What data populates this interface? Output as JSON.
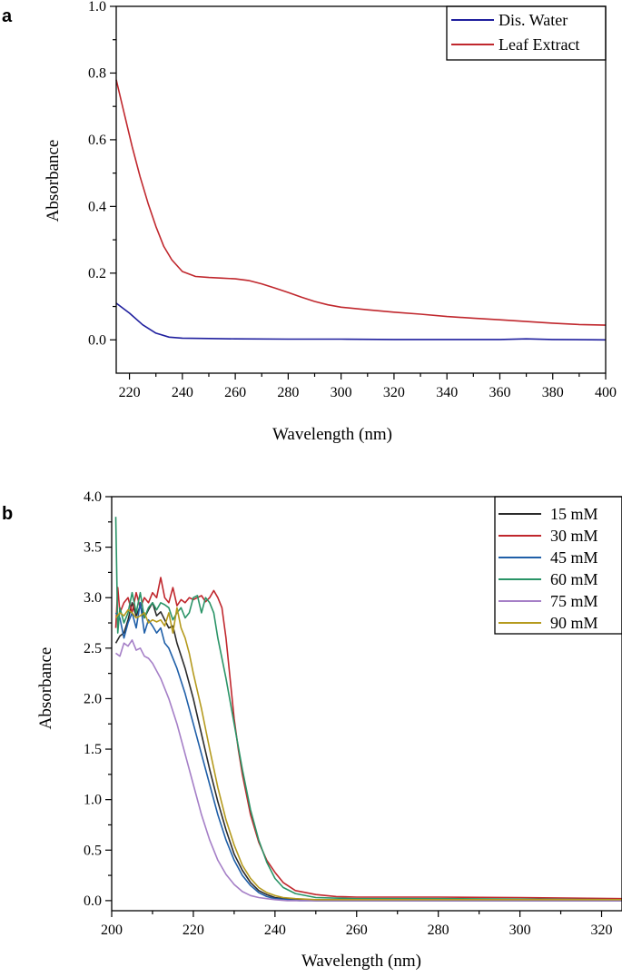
{
  "chart_data": [
    {
      "panel_label": "a",
      "type": "line",
      "xlabel": "Wavelength (nm)",
      "ylabel": "Absorbance",
      "xlim": [
        215,
        400
      ],
      "ylim": [
        -0.1,
        1.0
      ],
      "xticks": [
        220,
        240,
        260,
        280,
        300,
        320,
        340,
        360,
        380,
        400
      ],
      "yticks": [
        0.0,
        0.2,
        0.4,
        0.6,
        0.8,
        1.0
      ],
      "legend_position": "top-right",
      "series": [
        {
          "name": "Dis. Water",
          "color": "#1f1f9e",
          "x": [
            215,
            220,
            225,
            230,
            235,
            240,
            250,
            260,
            280,
            300,
            320,
            340,
            360,
            370,
            380,
            400
          ],
          "y": [
            0.11,
            0.08,
            0.045,
            0.02,
            0.008,
            0.005,
            0.004,
            0.003,
            0.002,
            0.002,
            0.001,
            0.001,
            0.001,
            0.003,
            0.001,
            0.0
          ]
        },
        {
          "name": "Leaf Extract",
          "color": "#c0272d",
          "x": [
            215,
            218,
            221,
            224,
            227,
            230,
            233,
            236,
            240,
            245,
            250,
            255,
            260,
            265,
            270,
            275,
            280,
            285,
            290,
            295,
            300,
            310,
            320,
            330,
            340,
            350,
            360,
            370,
            380,
            390,
            400
          ],
          "y": [
            0.78,
            0.68,
            0.58,
            0.49,
            0.41,
            0.34,
            0.28,
            0.24,
            0.205,
            0.19,
            0.187,
            0.185,
            0.183,
            0.178,
            0.168,
            0.155,
            0.142,
            0.128,
            0.115,
            0.105,
            0.098,
            0.09,
            0.083,
            0.077,
            0.07,
            0.065,
            0.06,
            0.055,
            0.05,
            0.046,
            0.044
          ]
        }
      ]
    },
    {
      "panel_label": "b",
      "type": "line",
      "xlabel": "Wavelength (nm)",
      "ylabel": "Absorbance",
      "xlim": [
        200,
        325
      ],
      "ylim": [
        -0.1,
        4.0
      ],
      "xticks": [
        200,
        220,
        240,
        260,
        280,
        300,
        320
      ],
      "yticks": [
        0.0,
        0.5,
        1.0,
        1.5,
        2.0,
        2.5,
        3.0,
        3.5,
        4.0
      ],
      "legend_position": "top-right",
      "series": [
        {
          "name": "15 mM",
          "color": "#2b2b2b",
          "x": [
            201,
            202,
            203,
            204,
            205,
            206,
            207,
            208,
            209,
            210,
            211,
            212,
            213,
            214,
            215,
            216,
            218,
            220,
            222,
            224,
            226,
            228,
            230,
            232,
            234,
            236,
            238,
            240,
            242,
            245,
            250,
            260,
            280,
            300,
            325
          ],
          "y": [
            2.55,
            2.62,
            2.65,
            2.78,
            2.95,
            2.82,
            2.92,
            2.8,
            2.88,
            2.95,
            2.82,
            2.86,
            2.78,
            2.7,
            2.72,
            2.55,
            2.3,
            2.0,
            1.65,
            1.3,
            0.98,
            0.7,
            0.46,
            0.3,
            0.18,
            0.1,
            0.06,
            0.03,
            0.02,
            0.01,
            0.0,
            0.0,
            0.0,
            0.0,
            0.0
          ]
        },
        {
          "name": "30 mM",
          "color": "#c0272d",
          "x": [
            201,
            201.5,
            202,
            203,
            204,
            205,
            206,
            207,
            208,
            209,
            210,
            211,
            212,
            213,
            214,
            215,
            216,
            217,
            218,
            219,
            220,
            221,
            222,
            223,
            224,
            225,
            226,
            227,
            228,
            229,
            230,
            231,
            232,
            233,
            234,
            236,
            238,
            240,
            242,
            245,
            250,
            255,
            260,
            280,
            300,
            325
          ],
          "y": [
            2.7,
            3.1,
            2.85,
            2.95,
            3.0,
            2.85,
            3.05,
            2.9,
            3.0,
            2.95,
            3.05,
            3.0,
            3.2,
            3.0,
            2.95,
            3.1,
            2.92,
            2.98,
            2.95,
            3.0,
            2.98,
            3.0,
            3.02,
            2.96,
            3.0,
            3.07,
            3.0,
            2.9,
            2.6,
            2.2,
            1.8,
            1.5,
            1.25,
            1.05,
            0.85,
            0.58,
            0.4,
            0.28,
            0.18,
            0.1,
            0.06,
            0.04,
            0.035,
            0.035,
            0.03,
            0.02
          ]
        },
        {
          "name": "45 mM",
          "color": "#1f5fa8",
          "x": [
            201,
            202,
            203,
            204,
            205,
            206,
            207,
            208,
            209,
            210,
            211,
            212,
            213,
            214,
            216,
            218,
            220,
            222,
            224,
            226,
            228,
            230,
            232,
            234,
            236,
            238,
            240,
            243,
            246,
            250,
            260,
            280,
            300,
            325
          ],
          "y": [
            2.85,
            2.8,
            2.6,
            2.75,
            2.85,
            2.7,
            2.95,
            2.65,
            2.78,
            2.72,
            2.65,
            2.7,
            2.55,
            2.5,
            2.3,
            2.05,
            1.75,
            1.45,
            1.15,
            0.85,
            0.6,
            0.4,
            0.25,
            0.15,
            0.08,
            0.04,
            0.02,
            0.01,
            0.0,
            0.0,
            0.0,
            0.0,
            0.0,
            0.0
          ]
        },
        {
          "name": "60 mM",
          "color": "#2a9467",
          "x": [
            201,
            201.5,
            202,
            203,
            204,
            205,
            206,
            207,
            208,
            209,
            210,
            211,
            212,
            213,
            214,
            215,
            216,
            217,
            218,
            219,
            220,
            221,
            222,
            223,
            224,
            225,
            226,
            228,
            230,
            232,
            234,
            236,
            238,
            240,
            242,
            245,
            250,
            260,
            280,
            300,
            325
          ],
          "y": [
            3.8,
            2.65,
            2.9,
            2.75,
            2.85,
            3.05,
            2.85,
            3.05,
            2.8,
            2.9,
            2.95,
            2.88,
            2.95,
            2.93,
            2.9,
            2.78,
            2.85,
            2.9,
            2.8,
            2.85,
            3.0,
            3.02,
            2.85,
            3.0,
            2.95,
            2.85,
            2.6,
            2.2,
            1.75,
            1.3,
            0.9,
            0.6,
            0.38,
            0.22,
            0.13,
            0.07,
            0.03,
            0.02,
            0.02,
            0.015,
            0.01
          ]
        },
        {
          "name": "75 mM",
          "color": "#a57fc7",
          "x": [
            201,
            202,
            203,
            204,
            205,
            206,
            207,
            208,
            209,
            210,
            212,
            214,
            216,
            218,
            220,
            222,
            224,
            226,
            228,
            230,
            232,
            234,
            236,
            238,
            240,
            243,
            246,
            250,
            260,
            280,
            300,
            325
          ],
          "y": [
            2.45,
            2.42,
            2.55,
            2.52,
            2.58,
            2.48,
            2.5,
            2.42,
            2.4,
            2.35,
            2.2,
            2.0,
            1.75,
            1.45,
            1.15,
            0.85,
            0.6,
            0.4,
            0.26,
            0.16,
            0.09,
            0.05,
            0.03,
            0.02,
            0.01,
            0.0,
            0.0,
            0.0,
            0.0,
            0.0,
            0.0,
            0.0
          ]
        },
        {
          "name": "90 mM",
          "color": "#b59a1d",
          "x": [
            201,
            202,
            203,
            204,
            205,
            206,
            207,
            208,
            209,
            210,
            211,
            212,
            213,
            214,
            215,
            216,
            217,
            218,
            219,
            220,
            222,
            224,
            226,
            228,
            230,
            232,
            234,
            236,
            238,
            240,
            242,
            245,
            250,
            260,
            280,
            300,
            325
          ],
          "y": [
            2.8,
            2.85,
            2.82,
            2.88,
            2.85,
            2.8,
            2.82,
            2.85,
            2.75,
            2.78,
            2.76,
            2.78,
            2.72,
            2.85,
            2.65,
            2.9,
            2.7,
            2.6,
            2.45,
            2.25,
            1.9,
            1.5,
            1.12,
            0.8,
            0.55,
            0.35,
            0.22,
            0.13,
            0.08,
            0.05,
            0.03,
            0.02,
            0.01,
            0.01,
            0.01,
            0.01,
            0.01
          ]
        }
      ]
    }
  ]
}
